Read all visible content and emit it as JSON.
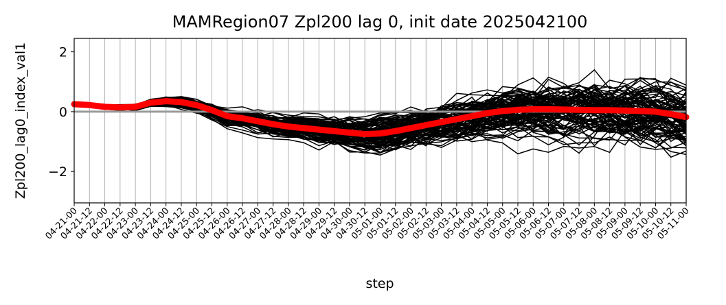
{
  "chart_data": {
    "type": "line",
    "title": "MAMRegion07 Zpl200 lag 0, init date 2025042100",
    "xlabel": "step",
    "ylabel": "Zpl200_lag0_index_val1",
    "ylim": [
      -3.05,
      2.45
    ],
    "yticks": [
      -2,
      0,
      2
    ],
    "ytick_labels": [
      "−2",
      "0",
      "2"
    ],
    "grid": "vertical",
    "categories": [
      "04-21-00",
      "04-21-12",
      "04-22-00",
      "04-22-12",
      "04-23-00",
      "04-23-12",
      "04-24-00",
      "04-24-12",
      "04-25-00",
      "04-25-12",
      "04-26-00",
      "04-26-12",
      "04-27-00",
      "04-27-12",
      "04-28-00",
      "04-28-12",
      "04-29-00",
      "04-29-12",
      "04-30-00",
      "04-30-12",
      "05-01-00",
      "05-01-12",
      "05-02-00",
      "05-02-12",
      "05-03-00",
      "05-03-12",
      "05-04-00",
      "05-04-12",
      "05-05-00",
      "05-05-12",
      "05-06-00",
      "05-06-12",
      "05-07-00",
      "05-07-12",
      "05-08-00",
      "05-08-12",
      "05-09-00",
      "05-09-12",
      "05-10-00",
      "05-10-12",
      "05-11-00"
    ],
    "zero_line": {
      "value": 0,
      "color": "#999999"
    },
    "ensemble": {
      "member_count": 100,
      "color": "#000000"
    },
    "mean_series": {
      "color": "#ff0000",
      "values": [
        0.25,
        0.22,
        0.16,
        0.14,
        0.16,
        0.3,
        0.35,
        0.32,
        0.22,
        0.05,
        -0.15,
        -0.22,
        -0.32,
        -0.42,
        -0.5,
        -0.55,
        -0.6,
        -0.65,
        -0.7,
        -0.75,
        -0.73,
        -0.65,
        -0.55,
        -0.45,
        -0.35,
        -0.25,
        -0.15,
        -0.05,
        0.02,
        0.06,
        0.08,
        0.08,
        0.07,
        0.06,
        0.05,
        0.05,
        0.04,
        0.02,
        0.0,
        -0.08,
        -0.18
      ]
    },
    "colors": {
      "member": "#000000",
      "mean": "#ff0000",
      "grid": "#b0b0b0",
      "zero": "#999999"
    }
  }
}
